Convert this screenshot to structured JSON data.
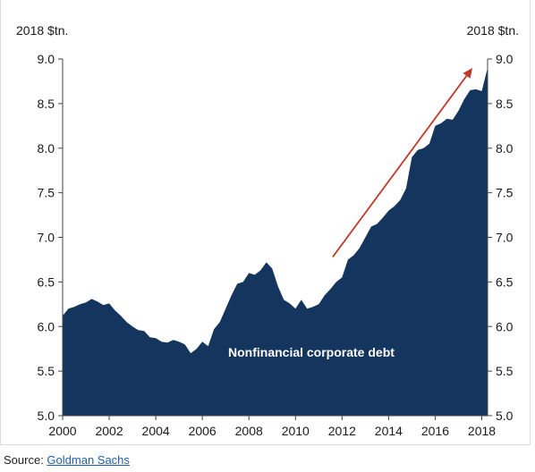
{
  "chart_data": {
    "type": "area",
    "unit_left": "2018 $tn.",
    "unit_right": "2018 $tn.",
    "annotation": "Nonfinancial corporate debt",
    "x_ticks": [
      "2000",
      "2002",
      "2004",
      "2006",
      "2008",
      "2010",
      "2012",
      "2014",
      "2016",
      "2018"
    ],
    "y_ticks": [
      "5.0",
      "5.5",
      "6.0",
      "6.5",
      "7.0",
      "7.5",
      "8.0",
      "8.5",
      "9.0"
    ],
    "xlim": [
      2000,
      2018.25
    ],
    "ylim": [
      5.0,
      9.0
    ],
    "fill_color": "#14365e",
    "arrow_color": "#c0392b",
    "trend_arrow": {
      "from": [
        2011.6,
        6.78
      ],
      "to": [
        2017.6,
        8.9
      ]
    },
    "series": [
      {
        "x": [
          2000.0,
          2000.25,
          2000.5,
          2000.75,
          2001.0,
          2001.25,
          2001.5,
          2001.75,
          2002.0,
          2002.25,
          2002.5,
          2002.75,
          2003.0,
          2003.25,
          2003.5,
          2003.75,
          2004.0,
          2004.25,
          2004.5,
          2004.75,
          2005.0,
          2005.25,
          2005.5,
          2005.75,
          2006.0,
          2006.25,
          2006.5,
          2006.75,
          2007.0,
          2007.25,
          2007.5,
          2007.75,
          2008.0,
          2008.25,
          2008.5,
          2008.75,
          2009.0,
          2009.25,
          2009.5,
          2009.75,
          2010.0,
          2010.25,
          2010.5,
          2010.75,
          2011.0,
          2011.25,
          2011.5,
          2011.75,
          2012.0,
          2012.25,
          2012.5,
          2012.75,
          2013.0,
          2013.25,
          2013.5,
          2013.75,
          2014.0,
          2014.25,
          2014.5,
          2014.75,
          2015.0,
          2015.25,
          2015.5,
          2015.75,
          2016.0,
          2016.25,
          2016.5,
          2016.75,
          2017.0,
          2017.25,
          2017.5,
          2017.75,
          2018.0,
          2018.25
        ],
        "values": [
          6.12,
          6.2,
          6.22,
          6.25,
          6.27,
          6.31,
          6.28,
          6.24,
          6.26,
          6.18,
          6.12,
          6.05,
          6.0,
          5.96,
          5.95,
          5.88,
          5.87,
          5.83,
          5.82,
          5.85,
          5.83,
          5.8,
          5.7,
          5.75,
          5.83,
          5.78,
          5.97,
          6.05,
          6.2,
          6.35,
          6.48,
          6.5,
          6.6,
          6.58,
          6.63,
          6.72,
          6.65,
          6.45,
          6.3,
          6.26,
          6.2,
          6.3,
          6.2,
          6.22,
          6.25,
          6.35,
          6.42,
          6.5,
          6.55,
          6.75,
          6.8,
          6.88,
          7.0,
          7.12,
          7.15,
          7.22,
          7.3,
          7.35,
          7.42,
          7.55,
          7.9,
          7.98,
          8.0,
          8.05,
          8.25,
          8.28,
          8.33,
          8.32,
          8.42,
          8.55,
          8.65,
          8.66,
          8.64,
          8.9
        ]
      }
    ]
  },
  "footer": {
    "source_prefix": "Source: ",
    "source_link": "Goldman Sachs"
  }
}
